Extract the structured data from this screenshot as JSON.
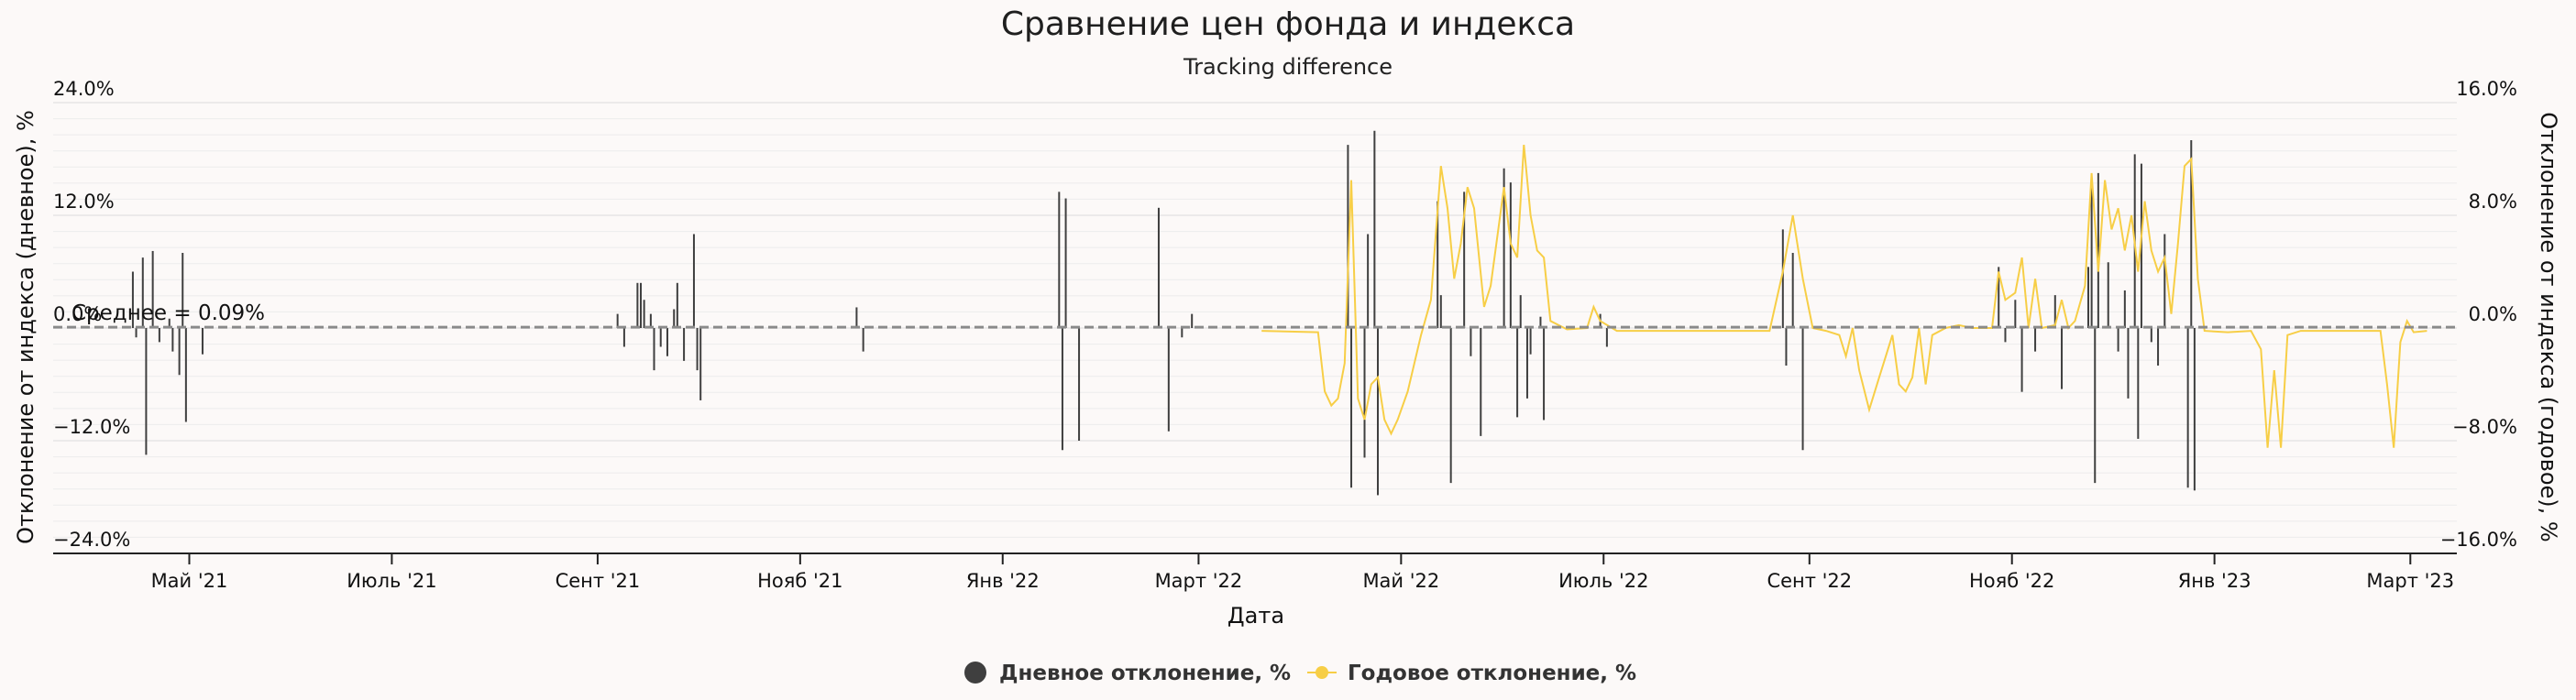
{
  "chart_data": {
    "type": "bar+line",
    "title": "Сравнение цен фонда и индекса",
    "subtitle": "Tracking difference",
    "xlabel": "Дата",
    "ylabel_left": "Отклонение от индекса (дневное), %",
    "ylabel_right": "Отклонение от индекса (годовое), %",
    "ylim_left": [
      -24,
      24
    ],
    "ylim_right": [
      -16,
      16
    ],
    "left_ticks": [
      "24.0%",
      "12.0%",
      "0.0%",
      "−12.0%",
      "−24.0%"
    ],
    "right_ticks": [
      "16.0%",
      "8.0%",
      "0.0%",
      "−8.0%",
      "−16.0%"
    ],
    "x_range": [
      "2021-03-21",
      "2023-03-15"
    ],
    "x_ticks": [
      {
        "date": "2021-05-01",
        "label": "Май '21"
      },
      {
        "date": "2021-07-01",
        "label": "Июль '21"
      },
      {
        "date": "2021-09-01",
        "label": "Сент '21"
      },
      {
        "date": "2021-11-01",
        "label": "Нояб '21"
      },
      {
        "date": "2022-01-01",
        "label": "Янв '22"
      },
      {
        "date": "2022-03-01",
        "label": "Март '22"
      },
      {
        "date": "2022-05-01",
        "label": "Май '22"
      },
      {
        "date": "2022-07-01",
        "label": "Июль '22"
      },
      {
        "date": "2022-09-01",
        "label": "Сент '22"
      },
      {
        "date": "2022-11-01",
        "label": "Нояб '22"
      },
      {
        "date": "2023-01-01",
        "label": "Янв '23"
      },
      {
        "date": "2023-03-01",
        "label": "Март '23"
      }
    ],
    "mean_label": "Среднее = 0.09%",
    "mean_value": 0.09,
    "grid": true,
    "legend_position": "bottom-center",
    "series": [
      {
        "name": "Дневное отклонение, %",
        "type": "bar",
        "color": "#3f3f3f",
        "axis": "left",
        "points": [
          [
            "2021-04-14",
            6.0
          ],
          [
            "2021-04-15",
            -1.0
          ],
          [
            "2021-04-17",
            7.5
          ],
          [
            "2021-04-18",
            -13.5
          ],
          [
            "2021-04-20",
            8.2
          ],
          [
            "2021-04-22",
            -1.5
          ],
          [
            "2021-04-25",
            1.0
          ],
          [
            "2021-04-26",
            -2.5
          ],
          [
            "2021-04-28",
            -5.0
          ],
          [
            "2021-04-29",
            8.0
          ],
          [
            "2021-04-30",
            -10.0
          ],
          [
            "2021-05-05",
            -2.8
          ],
          [
            "2021-09-07",
            1.5
          ],
          [
            "2021-09-09",
            -2.0
          ],
          [
            "2021-09-13",
            4.8
          ],
          [
            "2021-09-14",
            4.8
          ],
          [
            "2021-09-15",
            3.0
          ],
          [
            "2021-09-17",
            1.5
          ],
          [
            "2021-09-18",
            -4.5
          ],
          [
            "2021-09-20",
            -2.0
          ],
          [
            "2021-09-22",
            -3.0
          ],
          [
            "2021-09-24",
            2.0
          ],
          [
            "2021-09-25",
            4.8
          ],
          [
            "2021-09-27",
            -3.5
          ],
          [
            "2021-09-30",
            10.0
          ],
          [
            "2021-10-01",
            -4.5
          ],
          [
            "2021-10-02",
            -7.7
          ],
          [
            "2021-11-18",
            2.2
          ],
          [
            "2021-11-20",
            -2.5
          ],
          [
            "2022-01-18",
            14.5
          ],
          [
            "2022-01-19",
            -13.0
          ],
          [
            "2022-01-20",
            13.8
          ],
          [
            "2022-01-24",
            -12.0
          ],
          [
            "2022-02-17",
            12.8
          ],
          [
            "2022-02-20",
            -11.0
          ],
          [
            "2022-02-24",
            -1.0
          ],
          [
            "2022-02-27",
            1.5
          ],
          [
            "2022-04-15",
            19.5
          ],
          [
            "2022-04-16",
            -17.0
          ],
          [
            "2022-04-20",
            -13.8
          ],
          [
            "2022-04-21",
            10.0
          ],
          [
            "2022-04-23",
            21.0
          ],
          [
            "2022-04-24",
            -17.8
          ],
          [
            "2022-05-12",
            13.5
          ],
          [
            "2022-05-13",
            3.5
          ],
          [
            "2022-05-16",
            -16.5
          ],
          [
            "2022-05-20",
            14.5
          ],
          [
            "2022-05-22",
            -3.0
          ],
          [
            "2022-05-25",
            -11.5
          ],
          [
            "2022-06-01",
            17.0
          ],
          [
            "2022-06-03",
            15.5
          ],
          [
            "2022-06-05",
            -9.5
          ],
          [
            "2022-06-06",
            3.5
          ],
          [
            "2022-06-08",
            -7.5
          ],
          [
            "2022-06-09",
            -2.8
          ],
          [
            "2022-06-12",
            1.2
          ],
          [
            "2022-06-13",
            -9.8
          ],
          [
            "2022-06-30",
            1.5
          ],
          [
            "2022-07-02",
            -2.0
          ],
          [
            "2022-08-24",
            10.5
          ],
          [
            "2022-08-25",
            -4.0
          ],
          [
            "2022-08-27",
            8.0
          ],
          [
            "2022-08-30",
            -13.0
          ],
          [
            "2022-10-28",
            6.5
          ],
          [
            "2022-10-30",
            -1.5
          ],
          [
            "2022-11-02",
            3.0
          ],
          [
            "2022-11-04",
            -6.8
          ],
          [
            "2022-11-08",
            -2.5
          ],
          [
            "2022-11-14",
            3.5
          ],
          [
            "2022-11-16",
            -6.5
          ],
          [
            "2022-11-24",
            6.5
          ],
          [
            "2022-11-25",
            15.0
          ],
          [
            "2022-11-26",
            -16.5
          ],
          [
            "2022-11-27",
            16.5
          ],
          [
            "2022-11-30",
            7.0
          ],
          [
            "2022-12-03",
            -2.5
          ],
          [
            "2022-12-05",
            4.0
          ],
          [
            "2022-12-06",
            -7.5
          ],
          [
            "2022-12-08",
            18.5
          ],
          [
            "2022-12-09",
            -11.8
          ],
          [
            "2022-12-10",
            17.5
          ],
          [
            "2022-12-13",
            -1.5
          ],
          [
            "2022-12-15",
            -4.0
          ],
          [
            "2022-12-17",
            10.0
          ],
          [
            "2022-12-24",
            -17.0
          ],
          [
            "2022-12-25",
            20.0
          ],
          [
            "2022-12-26",
            -17.3
          ]
        ]
      },
      {
        "name": "Годовое отклонение, %",
        "type": "line",
        "color": "#f7ce46",
        "axis": "right",
        "points": [
          [
            "2022-03-20",
            -0.2
          ],
          [
            "2022-04-06",
            -0.3
          ],
          [
            "2022-04-08",
            -4.5
          ],
          [
            "2022-04-10",
            -5.5
          ],
          [
            "2022-04-12",
            -5.0
          ],
          [
            "2022-04-14",
            -2.5
          ],
          [
            "2022-04-16",
            10.5
          ],
          [
            "2022-04-18",
            -5.0
          ],
          [
            "2022-04-20",
            -6.5
          ],
          [
            "2022-04-22",
            -4.0
          ],
          [
            "2022-04-24",
            -3.5
          ],
          [
            "2022-04-26",
            -6.5
          ],
          [
            "2022-04-28",
            -7.5
          ],
          [
            "2022-04-30",
            -6.5
          ],
          [
            "2022-05-03",
            -4.5
          ],
          [
            "2022-05-07",
            -0.5
          ],
          [
            "2022-05-10",
            2.0
          ],
          [
            "2022-05-13",
            11.5
          ],
          [
            "2022-05-15",
            8.5
          ],
          [
            "2022-05-17",
            3.5
          ],
          [
            "2022-05-19",
            6.0
          ],
          [
            "2022-05-21",
            10.0
          ],
          [
            "2022-05-23",
            8.5
          ],
          [
            "2022-05-26",
            1.5
          ],
          [
            "2022-05-28",
            3.0
          ],
          [
            "2022-06-01",
            10.0
          ],
          [
            "2022-06-03",
            6.0
          ],
          [
            "2022-06-05",
            5.0
          ],
          [
            "2022-06-07",
            13.0
          ],
          [
            "2022-06-09",
            8.0
          ],
          [
            "2022-06-11",
            5.5
          ],
          [
            "2022-06-13",
            5.0
          ],
          [
            "2022-06-15",
            0.5
          ],
          [
            "2022-06-20",
            -0.1
          ],
          [
            "2022-06-26",
            0.0
          ],
          [
            "2022-06-28",
            1.5
          ],
          [
            "2022-06-30",
            0.5
          ],
          [
            "2022-07-05",
            -0.2
          ],
          [
            "2022-08-20",
            -0.2
          ],
          [
            "2022-08-24",
            4.0
          ],
          [
            "2022-08-27",
            8.0
          ],
          [
            "2022-08-30",
            3.5
          ],
          [
            "2022-09-02",
            0.0
          ],
          [
            "2022-09-06",
            -0.2
          ],
          [
            "2022-09-10",
            -0.5
          ],
          [
            "2022-09-12",
            -2.0
          ],
          [
            "2022-09-14",
            0.0
          ],
          [
            "2022-09-16",
            -3.0
          ],
          [
            "2022-09-19",
            -5.8
          ],
          [
            "2022-09-22",
            -3.5
          ],
          [
            "2022-09-24",
            -2.0
          ],
          [
            "2022-09-26",
            -0.5
          ],
          [
            "2022-09-28",
            -4.0
          ],
          [
            "2022-09-30",
            -4.5
          ],
          [
            "2022-10-02",
            -3.5
          ],
          [
            "2022-10-04",
            0.0
          ],
          [
            "2022-10-06",
            -4.0
          ],
          [
            "2022-10-08",
            -0.5
          ],
          [
            "2022-10-12",
            0.0
          ],
          [
            "2022-10-16",
            0.2
          ],
          [
            "2022-10-20",
            0.0
          ],
          [
            "2022-10-26",
            0.0
          ],
          [
            "2022-10-28",
            4.0
          ],
          [
            "2022-10-30",
            2.0
          ],
          [
            "2022-11-02",
            2.5
          ],
          [
            "2022-11-04",
            5.0
          ],
          [
            "2022-11-06",
            0.0
          ],
          [
            "2022-11-08",
            3.5
          ],
          [
            "2022-11-10",
            0.0
          ],
          [
            "2022-11-14",
            0.2
          ],
          [
            "2022-11-16",
            2.0
          ],
          [
            "2022-11-18",
            0.0
          ],
          [
            "2022-11-20",
            0.5
          ],
          [
            "2022-11-23",
            3.0
          ],
          [
            "2022-11-25",
            11.0
          ],
          [
            "2022-11-27",
            4.0
          ],
          [
            "2022-11-29",
            10.5
          ],
          [
            "2022-12-01",
            7.0
          ],
          [
            "2022-12-03",
            8.5
          ],
          [
            "2022-12-05",
            5.5
          ],
          [
            "2022-12-07",
            8.0
          ],
          [
            "2022-12-09",
            4.0
          ],
          [
            "2022-12-11",
            9.0
          ],
          [
            "2022-12-13",
            5.5
          ],
          [
            "2022-12-15",
            4.0
          ],
          [
            "2022-12-17",
            5.0
          ],
          [
            "2022-12-19",
            1.0
          ],
          [
            "2022-12-21",
            6.0
          ],
          [
            "2022-12-23",
            11.5
          ],
          [
            "2022-12-25",
            12.0
          ],
          [
            "2022-12-27",
            3.5
          ],
          [
            "2022-12-29",
            -0.2
          ],
          [
            "2023-01-05",
            -0.3
          ],
          [
            "2023-01-12",
            -0.2
          ],
          [
            "2023-01-15",
            -1.5
          ],
          [
            "2023-01-17",
            -8.5
          ],
          [
            "2023-01-19",
            -3.0
          ],
          [
            "2023-01-21",
            -8.5
          ],
          [
            "2023-01-23",
            -0.5
          ],
          [
            "2023-01-27",
            -0.2
          ],
          [
            "2023-02-20",
            -0.2
          ],
          [
            "2023-02-22",
            -4.0
          ],
          [
            "2023-02-24",
            -8.5
          ],
          [
            "2023-02-26",
            -1.0
          ],
          [
            "2023-02-28",
            0.5
          ],
          [
            "2023-03-02",
            -0.3
          ],
          [
            "2023-03-06",
            -0.2
          ]
        ]
      }
    ]
  }
}
